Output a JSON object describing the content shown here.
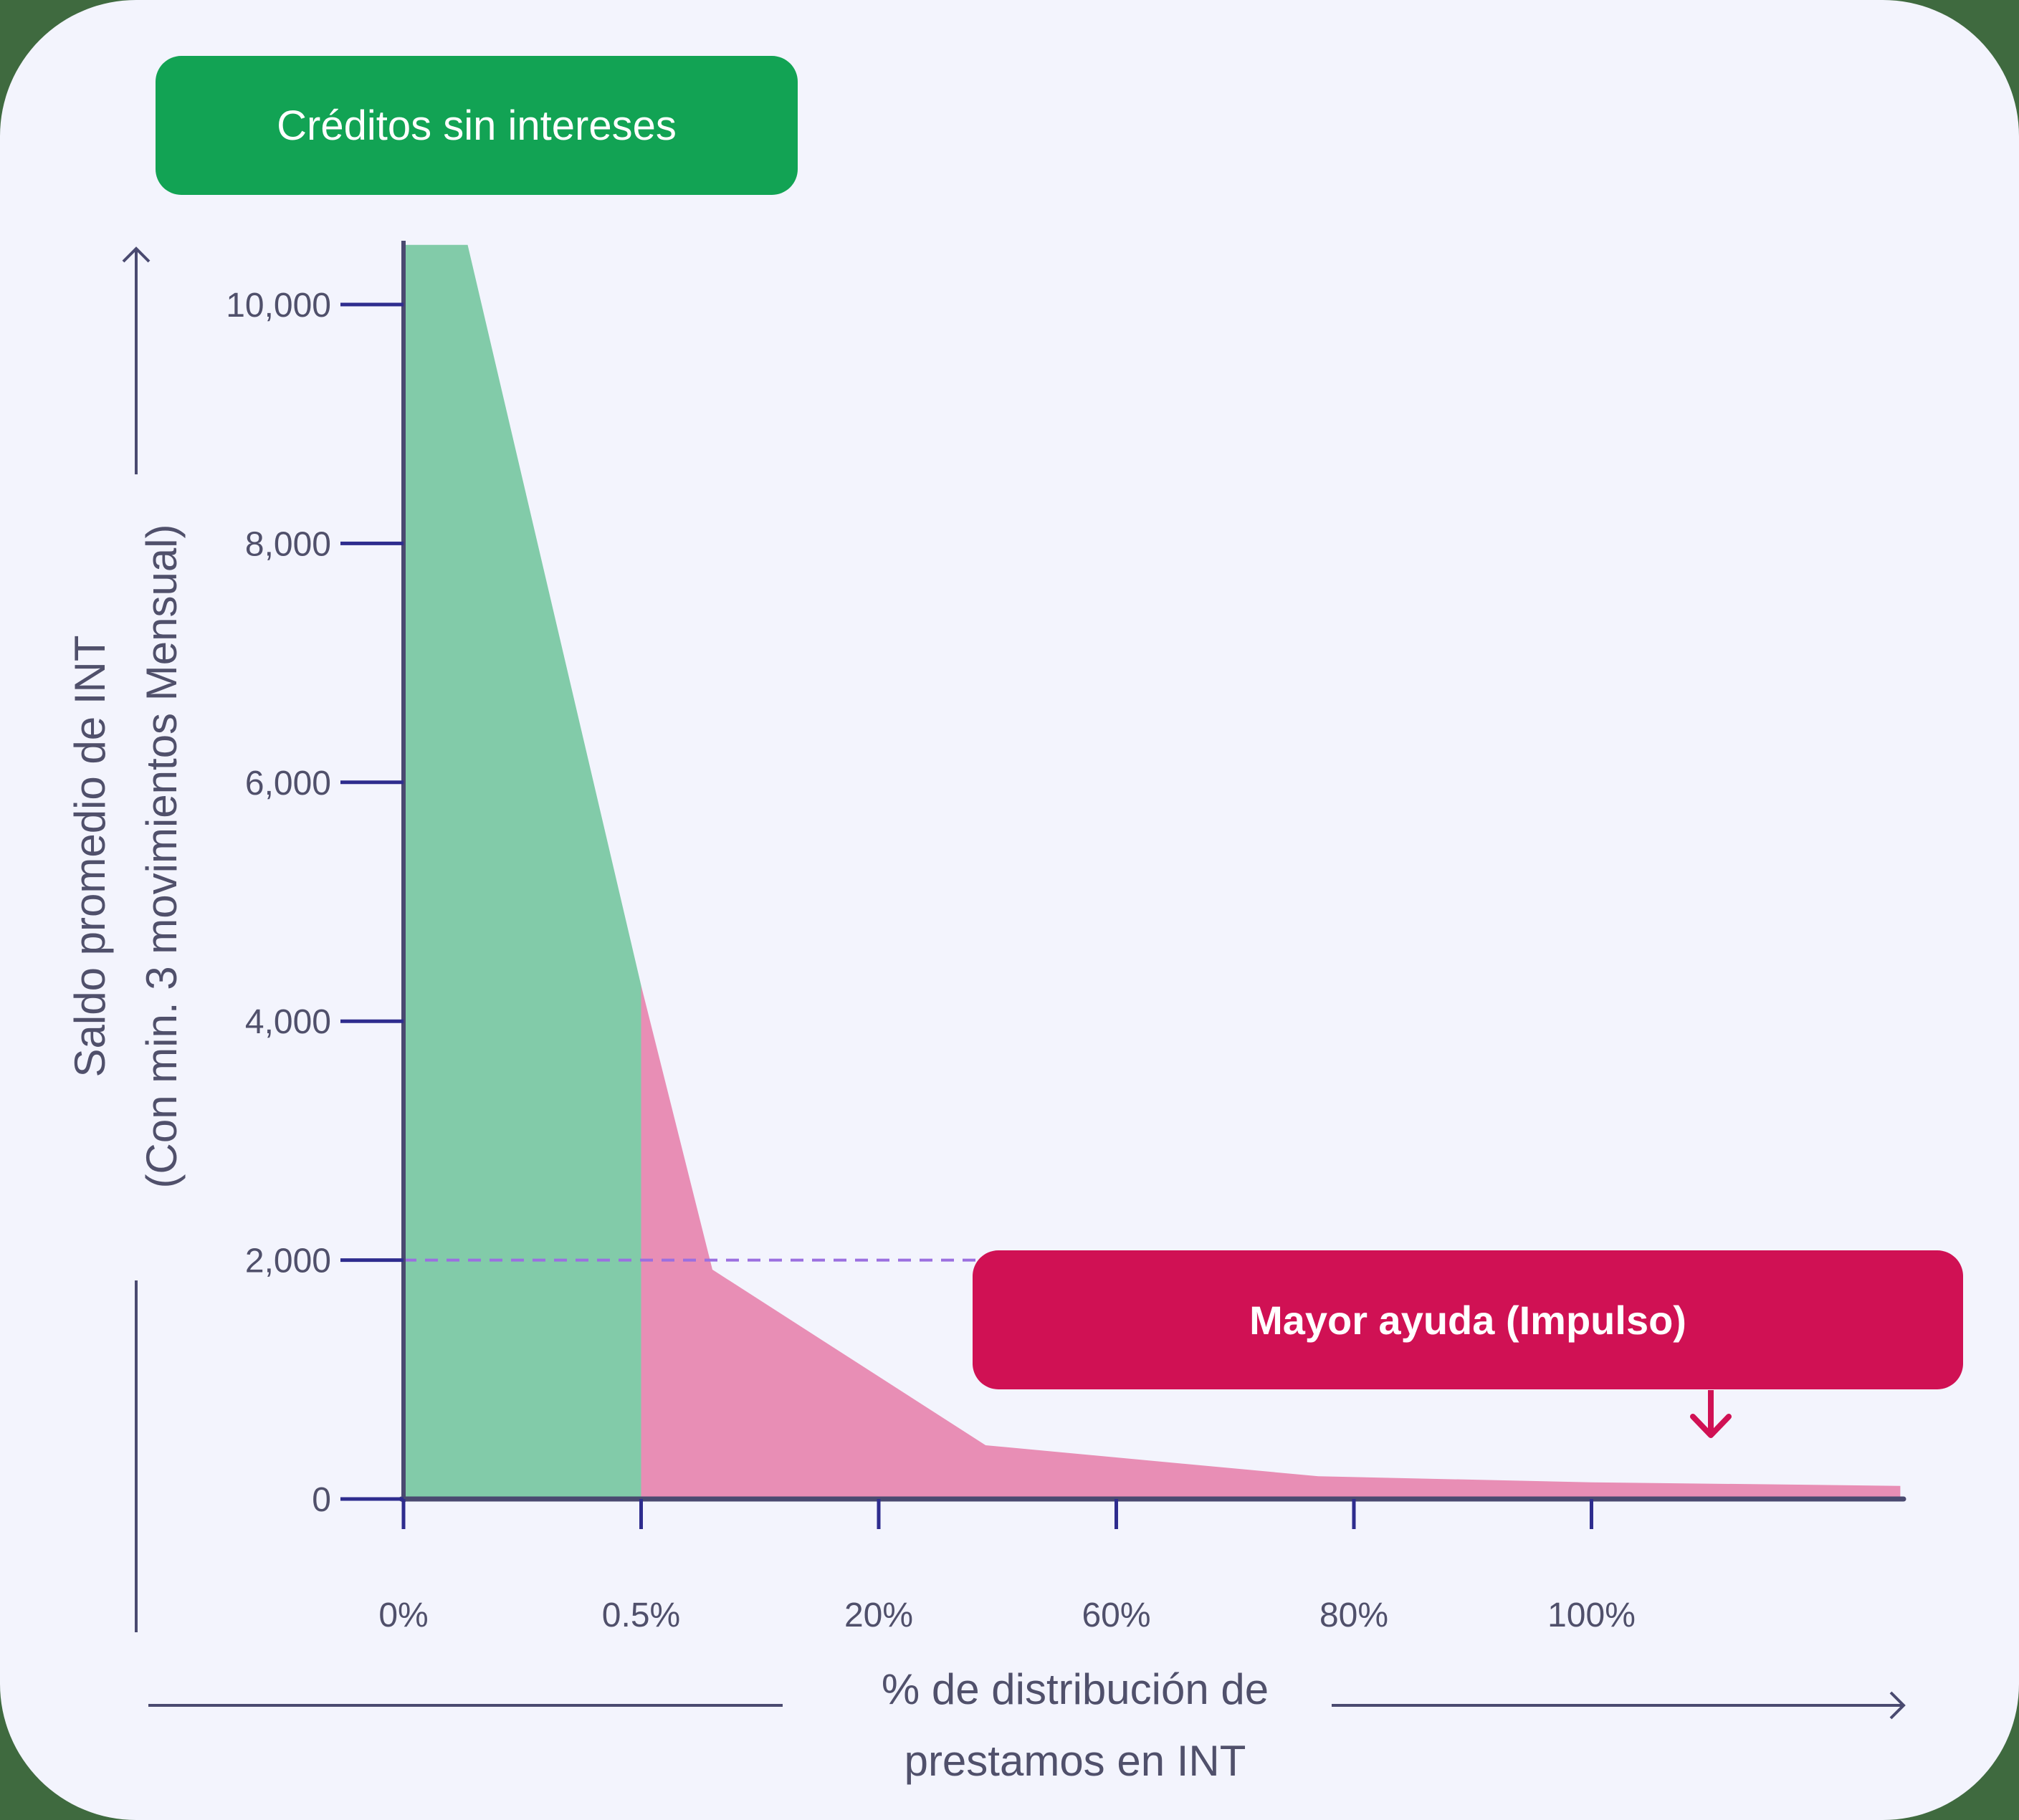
{
  "chart_data": {
    "type": "area",
    "title": "",
    "xlabel_lines": [
      "% de distribución de",
      "prestamos en INT"
    ],
    "ylabel_lines": [
      "Saldo promedio de INT",
      "(Con min. 3 movimientos Mensual)"
    ],
    "x_ticks": [
      "0%",
      "0.5%",
      "20%",
      "60%",
      "80%",
      "100%"
    ],
    "y_ticks": [
      "0",
      "2,000",
      "4,000",
      "6,000",
      "8,000",
      "10,000"
    ],
    "y_tick_values": [
      0,
      2000,
      4000,
      6000,
      8000,
      10000
    ],
    "ylim": [
      0,
      10500
    ],
    "grid": false,
    "reference_line": {
      "y": 2000,
      "style": "dashed",
      "color": "#9b6fe0"
    },
    "series": [
      {
        "color": "#82cba9",
        "points": [
          {
            "x": 0,
            "y": 10500
          },
          {
            "x": 0.27,
            "y": 10500
          },
          {
            "x": 1,
            "y": 4300
          }
        ]
      },
      {
        "color": "#e88eb5",
        "points": [
          {
            "x": 1,
            "y": 4300
          },
          {
            "x": 1.3,
            "y": 1920
          },
          {
            "x": 2.45,
            "y": 450
          },
          {
            "x": 3.85,
            "y": 190
          },
          {
            "x": 5,
            "y": 140
          },
          {
            "x": 6.3,
            "y": 110
          }
        ]
      }
    ],
    "annotations": [
      {
        "label": "Créditos sin intereses",
        "color": "#12a354"
      },
      {
        "label": "Mayor ayuda (Impulso)",
        "color": "#d01154"
      }
    ],
    "axis_color": "#4a4a70",
    "tick_color": "#2e2c8e"
  }
}
